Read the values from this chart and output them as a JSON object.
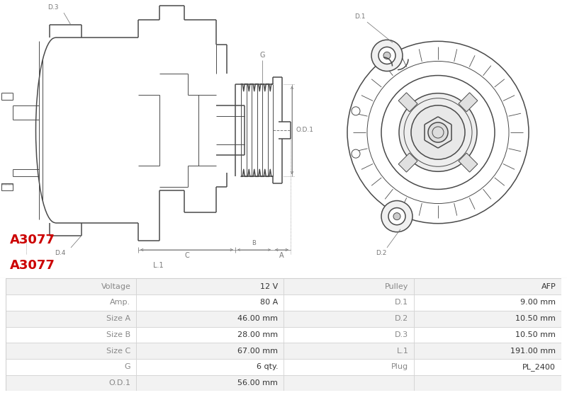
{
  "title": "A3077",
  "title_color": "#cc0000",
  "bg_color": "#ffffff",
  "table_rows": [
    [
      "Voltage",
      "12 V",
      "Pulley",
      "AFP"
    ],
    [
      "Amp.",
      "80 A",
      "D.1",
      "9.00 mm"
    ],
    [
      "Size A",
      "46.00 mm",
      "D.2",
      "10.50 mm"
    ],
    [
      "Size B",
      "28.00 mm",
      "D.3",
      "10.50 mm"
    ],
    [
      "Size C",
      "67.00 mm",
      "L.1",
      "191.00 mm"
    ],
    [
      "G",
      "6 qty.",
      "Plug",
      "PL_2400"
    ],
    [
      "O.D.1",
      "56.00 mm",
      "",
      ""
    ]
  ],
  "row_bg_odd": "#f2f2f2",
  "row_bg_even": "#ffffff",
  "line_color": "#d0d0d0",
  "text_color": "#333333",
  "label_color": "#555555",
  "draw_line_color": "#4a4a4a",
  "dim_color": "#777777"
}
